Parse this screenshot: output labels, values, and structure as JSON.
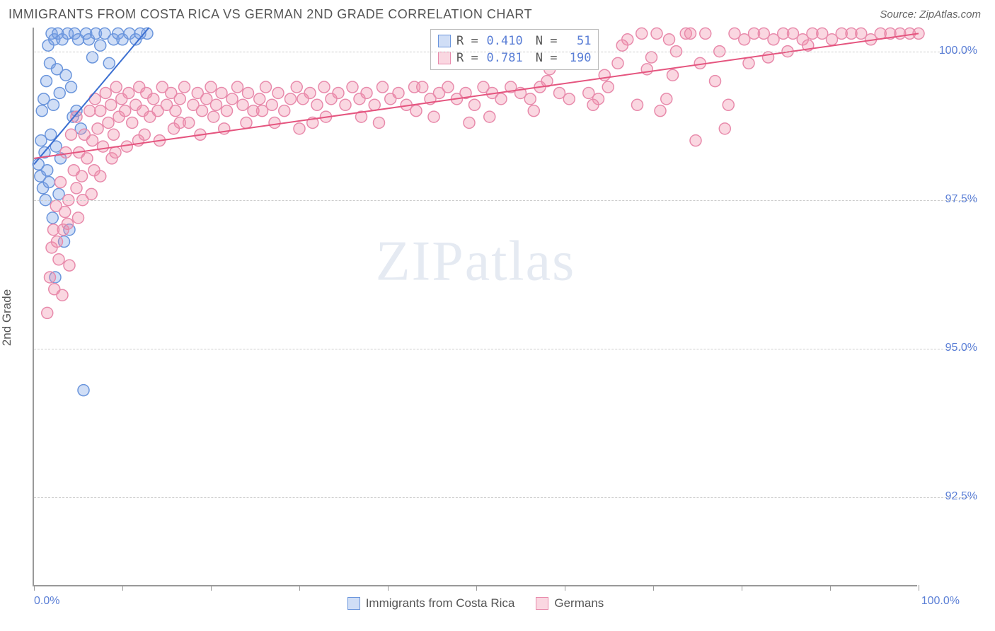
{
  "header": {
    "title": "IMMIGRANTS FROM COSTA RICA VS GERMAN 2ND GRADE CORRELATION CHART",
    "source_label": "Source: ",
    "source_name": "ZipAtlas.com"
  },
  "chart": {
    "type": "scatter",
    "y_axis_label": "2nd Grade",
    "xlim": [
      0,
      100
    ],
    "ylim": [
      91.0,
      100.4
    ],
    "x_tick_positions": [
      0,
      10,
      20,
      30,
      40,
      50,
      60,
      70,
      80,
      90,
      100
    ],
    "y_ticks": [
      {
        "value": 100.0,
        "label": "100.0%"
      },
      {
        "value": 97.5,
        "label": "97.5%"
      },
      {
        "value": 95.0,
        "label": "95.0%"
      },
      {
        "value": 92.5,
        "label": "92.5%"
      }
    ],
    "x_tick_labels": [
      {
        "value": 0,
        "label": "0.0%"
      },
      {
        "value": 100,
        "label": "100.0%"
      }
    ],
    "background_color": "#ffffff",
    "grid_color": "#cccccc",
    "axis_color": "#999999",
    "marker_radius": 8,
    "marker_stroke_width": 1.5,
    "watermark_text_a": "ZIP",
    "watermark_text_b": "atlas",
    "series": [
      {
        "key": "costa_rica",
        "name": "Immigrants from Costa Rica",
        "color_fill": "rgba(120,160,230,0.35)",
        "color_stroke": "#6a95dc",
        "line_color": "#3b6fd1",
        "line_width": 2,
        "r_label": "R =",
        "r_value": "0.410",
        "n_label": "N =",
        "n_value": "51",
        "trend_line": {
          "x1": 0,
          "y1": 98.1,
          "x2": 13,
          "y2": 100.4
        },
        "points": [
          [
            0.5,
            98.1
          ],
          [
            0.7,
            97.9
          ],
          [
            0.8,
            98.5
          ],
          [
            0.9,
            99.0
          ],
          [
            1.0,
            97.7
          ],
          [
            1.1,
            99.2
          ],
          [
            1.2,
            98.3
          ],
          [
            1.3,
            97.5
          ],
          [
            1.4,
            99.5
          ],
          [
            1.5,
            98.0
          ],
          [
            1.6,
            100.1
          ],
          [
            1.7,
            97.8
          ],
          [
            1.8,
            99.8
          ],
          [
            1.9,
            98.6
          ],
          [
            2.0,
            100.3
          ],
          [
            2.1,
            97.2
          ],
          [
            2.2,
            99.1
          ],
          [
            2.3,
            100.2
          ],
          [
            2.4,
            96.2
          ],
          [
            2.5,
            98.4
          ],
          [
            2.6,
            99.7
          ],
          [
            2.7,
            100.3
          ],
          [
            2.8,
            97.6
          ],
          [
            2.9,
            99.3
          ],
          [
            3.0,
            98.2
          ],
          [
            3.2,
            100.2
          ],
          [
            3.4,
            96.8
          ],
          [
            3.6,
            99.6
          ],
          [
            3.8,
            100.3
          ],
          [
            4.0,
            97.0
          ],
          [
            4.2,
            99.4
          ],
          [
            4.4,
            98.9
          ],
          [
            4.6,
            100.3
          ],
          [
            4.8,
            99.0
          ],
          [
            5.0,
            100.2
          ],
          [
            5.3,
            98.7
          ],
          [
            5.6,
            94.3
          ],
          [
            5.9,
            100.3
          ],
          [
            6.2,
            100.2
          ],
          [
            6.6,
            99.9
          ],
          [
            7.0,
            100.3
          ],
          [
            7.5,
            100.1
          ],
          [
            8.0,
            100.3
          ],
          [
            8.5,
            99.8
          ],
          [
            9.0,
            100.2
          ],
          [
            9.5,
            100.3
          ],
          [
            10.0,
            100.2
          ],
          [
            10.8,
            100.3
          ],
          [
            11.5,
            100.2
          ],
          [
            12.0,
            100.3
          ],
          [
            12.8,
            100.3
          ]
        ]
      },
      {
        "key": "germans",
        "name": "Germans",
        "color_fill": "rgba(240,140,170,0.35)",
        "color_stroke": "#e88aab",
        "line_color": "#e5557f",
        "line_width": 2,
        "r_label": "R =",
        "r_value": "0.781",
        "n_label": "N =",
        "n_value": "190",
        "trend_line": {
          "x1": 0,
          "y1": 98.2,
          "x2": 100,
          "y2": 100.3
        },
        "points": [
          [
            1.5,
            95.6
          ],
          [
            2.0,
            96.7
          ],
          [
            2.3,
            96.0
          ],
          [
            2.5,
            97.4
          ],
          [
            2.8,
            96.5
          ],
          [
            3.0,
            97.8
          ],
          [
            3.3,
            97.0
          ],
          [
            3.6,
            98.3
          ],
          [
            3.9,
            97.5
          ],
          [
            4.2,
            98.6
          ],
          [
            4.5,
            98.0
          ],
          [
            4.8,
            98.9
          ],
          [
            5.1,
            98.3
          ],
          [
            5.4,
            97.9
          ],
          [
            5.7,
            98.6
          ],
          [
            6.0,
            98.2
          ],
          [
            6.3,
            99.0
          ],
          [
            6.6,
            98.5
          ],
          [
            6.9,
            99.2
          ],
          [
            7.2,
            98.7
          ],
          [
            7.5,
            99.0
          ],
          [
            7.8,
            98.4
          ],
          [
            8.1,
            99.3
          ],
          [
            8.4,
            98.8
          ],
          [
            8.7,
            99.1
          ],
          [
            9.0,
            98.6
          ],
          [
            9.3,
            99.4
          ],
          [
            9.6,
            98.9
          ],
          [
            9.9,
            99.2
          ],
          [
            10.3,
            99.0
          ],
          [
            10.7,
            99.3
          ],
          [
            11.1,
            98.8
          ],
          [
            11.5,
            99.1
          ],
          [
            11.9,
            99.4
          ],
          [
            12.3,
            99.0
          ],
          [
            12.7,
            99.3
          ],
          [
            13.1,
            98.9
          ],
          [
            13.5,
            99.2
          ],
          [
            14.0,
            99.0
          ],
          [
            14.5,
            99.4
          ],
          [
            15.0,
            99.1
          ],
          [
            15.5,
            99.3
          ],
          [
            16.0,
            99.0
          ],
          [
            16.5,
            99.2
          ],
          [
            17.0,
            99.4
          ],
          [
            17.5,
            98.8
          ],
          [
            18.0,
            99.1
          ],
          [
            18.5,
            99.3
          ],
          [
            19.0,
            99.0
          ],
          [
            19.5,
            99.2
          ],
          [
            20.0,
            99.4
          ],
          [
            20.6,
            99.1
          ],
          [
            21.2,
            99.3
          ],
          [
            21.8,
            99.0
          ],
          [
            22.4,
            99.2
          ],
          [
            23.0,
            99.4
          ],
          [
            23.6,
            99.1
          ],
          [
            24.2,
            99.3
          ],
          [
            24.8,
            99.0
          ],
          [
            25.5,
            99.2
          ],
          [
            26.2,
            99.4
          ],
          [
            26.9,
            99.1
          ],
          [
            27.6,
            99.3
          ],
          [
            28.3,
            99.0
          ],
          [
            29.0,
            99.2
          ],
          [
            29.7,
            99.4
          ],
          [
            30.4,
            99.2
          ],
          [
            31.2,
            99.3
          ],
          [
            32.0,
            99.1
          ],
          [
            32.8,
            99.4
          ],
          [
            33.6,
            99.2
          ],
          [
            34.4,
            99.3
          ],
          [
            35.2,
            99.1
          ],
          [
            36.0,
            99.4
          ],
          [
            36.8,
            99.2
          ],
          [
            37.6,
            99.3
          ],
          [
            38.5,
            99.1
          ],
          [
            39.4,
            99.4
          ],
          [
            40.3,
            99.2
          ],
          [
            41.2,
            99.3
          ],
          [
            42.1,
            99.1
          ],
          [
            43.0,
            99.4
          ],
          [
            43.9,
            99.4
          ],
          [
            44.8,
            99.2
          ],
          [
            45.8,
            99.3
          ],
          [
            46.8,
            99.4
          ],
          [
            47.8,
            99.2
          ],
          [
            48.8,
            99.3
          ],
          [
            49.8,
            99.1
          ],
          [
            50.8,
            99.4
          ],
          [
            51.8,
            99.3
          ],
          [
            52.8,
            99.2
          ],
          [
            53.9,
            99.4
          ],
          [
            55.0,
            99.3
          ],
          [
            56.1,
            99.2
          ],
          [
            57.2,
            99.4
          ],
          [
            58.3,
            99.7
          ],
          [
            59.4,
            99.3
          ],
          [
            60.5,
            99.2
          ],
          [
            61.6,
            99.8
          ],
          [
            62.7,
            99.3
          ],
          [
            63.8,
            99.2
          ],
          [
            64.9,
            99.4
          ],
          [
            66.0,
            99.8
          ],
          [
            67.1,
            100.2
          ],
          [
            68.2,
            99.1
          ],
          [
            69.3,
            99.7
          ],
          [
            70.4,
            100.3
          ],
          [
            71.5,
            99.2
          ],
          [
            72.6,
            100.0
          ],
          [
            73.7,
            100.3
          ],
          [
            74.8,
            98.5
          ],
          [
            75.9,
            100.3
          ],
          [
            77.0,
            99.5
          ],
          [
            78.1,
            98.7
          ],
          [
            79.2,
            100.3
          ],
          [
            80.3,
            100.2
          ],
          [
            81.4,
            100.3
          ],
          [
            82.5,
            100.3
          ],
          [
            83.6,
            100.2
          ],
          [
            84.7,
            100.3
          ],
          [
            85.8,
            100.3
          ],
          [
            86.9,
            100.2
          ],
          [
            88.0,
            100.3
          ],
          [
            89.1,
            100.3
          ],
          [
            90.2,
            100.2
          ],
          [
            91.3,
            100.3
          ],
          [
            92.4,
            100.3
          ],
          [
            93.5,
            100.3
          ],
          [
            94.6,
            100.2
          ],
          [
            95.7,
            100.3
          ],
          [
            96.8,
            100.3
          ],
          [
            97.9,
            100.3
          ],
          [
            99.0,
            100.3
          ],
          [
            100.0,
            100.3
          ],
          [
            3.2,
            95.9
          ],
          [
            4.0,
            96.4
          ],
          [
            5.0,
            97.2
          ],
          [
            6.5,
            97.6
          ],
          [
            8.8,
            98.2
          ],
          [
            11.8,
            98.5
          ],
          [
            15.8,
            98.7
          ],
          [
            20.3,
            98.9
          ],
          [
            25.8,
            99.0
          ],
          [
            31.5,
            98.8
          ],
          [
            37.0,
            98.9
          ],
          [
            43.2,
            99.0
          ],
          [
            49.2,
            98.8
          ],
          [
            56.5,
            99.0
          ],
          [
            63.2,
            99.1
          ],
          [
            70.8,
            99.0
          ],
          [
            78.5,
            99.1
          ],
          [
            66.5,
            100.1
          ],
          [
            69.8,
            99.9
          ],
          [
            72.2,
            99.6
          ],
          [
            75.3,
            99.8
          ],
          [
            68.7,
            100.3
          ],
          [
            71.8,
            100.2
          ],
          [
            74.2,
            100.3
          ],
          [
            77.5,
            100.0
          ],
          [
            80.8,
            99.8
          ],
          [
            83.0,
            99.9
          ],
          [
            85.2,
            100.0
          ],
          [
            87.5,
            100.1
          ],
          [
            2.2,
            97.0
          ],
          [
            3.5,
            97.3
          ],
          [
            4.8,
            97.7
          ],
          [
            6.8,
            98.0
          ],
          [
            9.2,
            98.3
          ],
          [
            12.5,
            98.6
          ],
          [
            16.5,
            98.8
          ],
          [
            21.5,
            98.7
          ],
          [
            27.2,
            98.8
          ],
          [
            33.0,
            98.9
          ],
          [
            39.0,
            98.8
          ],
          [
            45.2,
            98.9
          ],
          [
            51.5,
            98.9
          ],
          [
            58.0,
            99.5
          ],
          [
            64.5,
            99.6
          ],
          [
            1.8,
            96.2
          ],
          [
            2.6,
            96.8
          ],
          [
            3.8,
            97.1
          ],
          [
            5.5,
            97.5
          ],
          [
            7.5,
            97.9
          ],
          [
            10.5,
            98.4
          ],
          [
            14.2,
            98.5
          ],
          [
            18.8,
            98.6
          ],
          [
            24.0,
            98.8
          ],
          [
            30.0,
            98.7
          ]
        ]
      }
    ]
  }
}
